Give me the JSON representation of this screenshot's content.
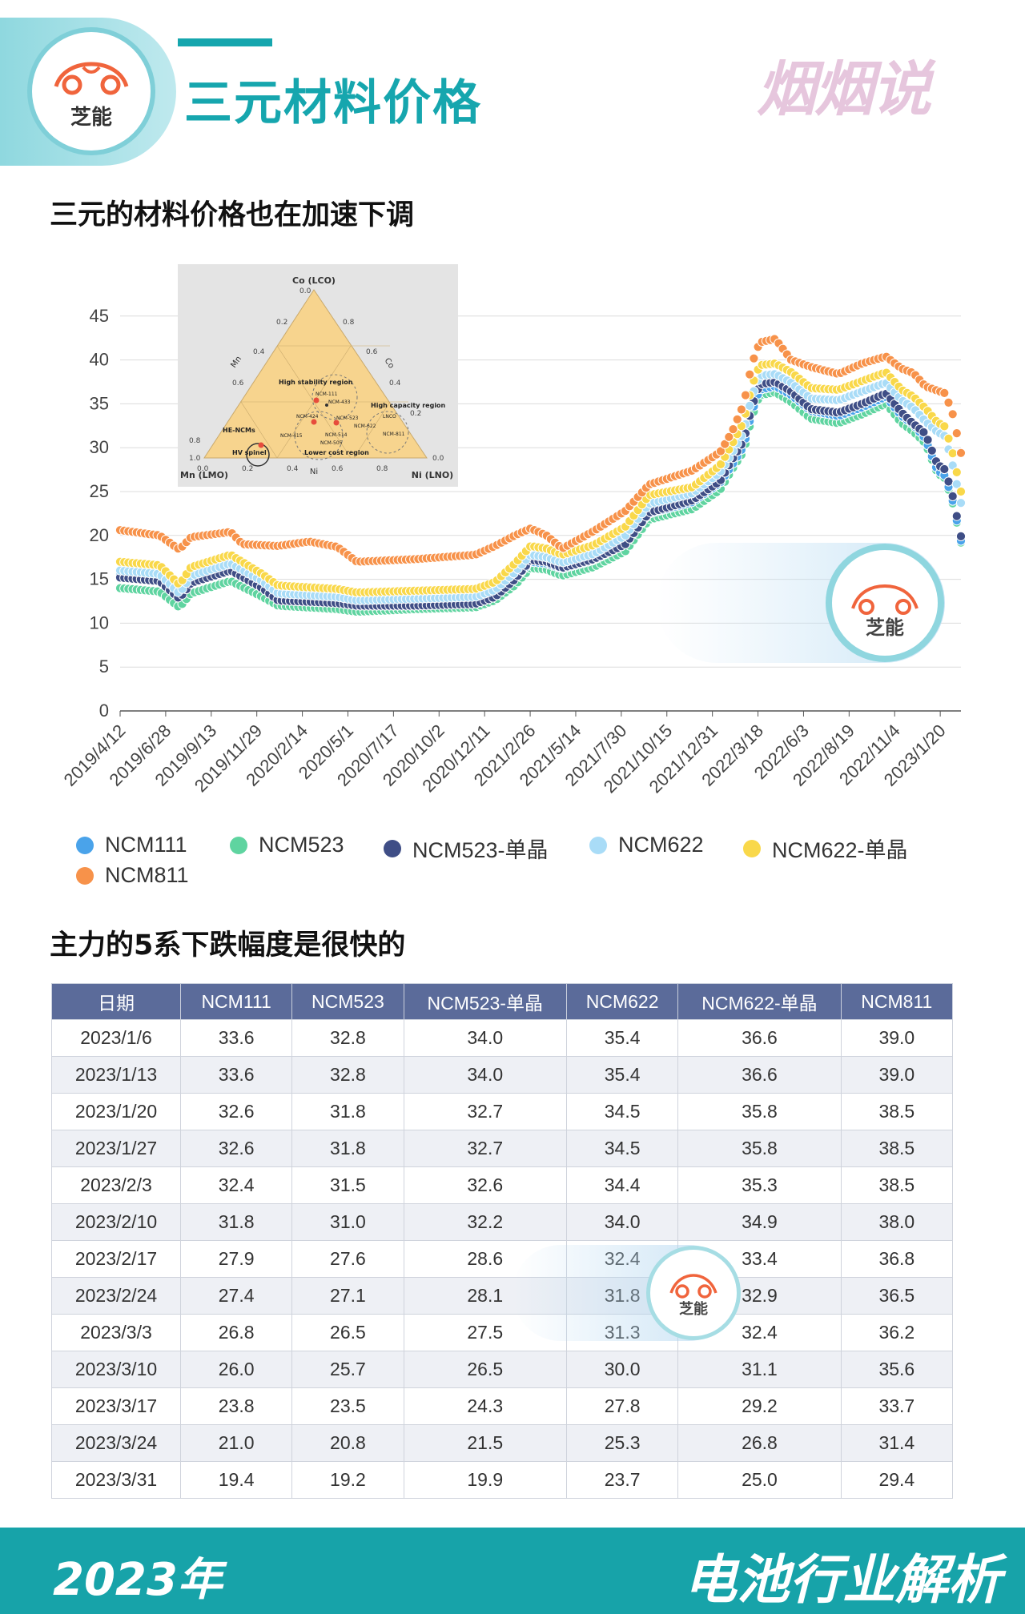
{
  "header": {
    "logo_text": "芝能",
    "title": "三元材料价格",
    "brand_mark": "烟烟说"
  },
  "section1_title": "三元的材料价格也在加速下调",
  "section2_title": "主力的5系下跌幅度是很快的",
  "footer": {
    "year": "2023年",
    "right_text": "电池行业解析"
  },
  "watermark": {
    "text": "芝能"
  },
  "inset": {
    "title_top": "Co (LCO)",
    "bottom_left": "Mn (LMO)",
    "bottom_right": "Ni (LNO)",
    "axis_left": "Mn",
    "axis_right": "Co",
    "axis_bottom": "Ni",
    "regions": [
      "High stability region",
      "High capacity region",
      "HE-NCMs",
      "HV spinel",
      "Lower cost region"
    ],
    "labels": [
      "NCM-111",
      "NCM-433",
      "NCM-424",
      "NCM-523",
      "NCM-622",
      "NCM-811",
      "LNCO",
      "NCM-514",
      "NCM-415",
      "NCM-505"
    ]
  },
  "chart_data": {
    "type": "scatter",
    "xlabel": "",
    "ylabel": "",
    "ylim": [
      0,
      45
    ],
    "yticks": [
      0,
      5,
      10,
      15,
      20,
      25,
      30,
      35,
      40,
      45
    ],
    "grid": true,
    "legend_position": "bottom",
    "x_tick_labels": [
      "2019/4/12",
      "2019/6/28",
      "2019/9/13",
      "2019/11/29",
      "2020/2/14",
      "2020/5/1",
      "2020/7/17",
      "2020/10/2",
      "2020/12/11",
      "2021/2/26",
      "2021/5/14",
      "2021/7/30",
      "2021/10/15",
      "2021/12/31",
      "2022/3/18",
      "2022/6/3",
      "2022/8/19",
      "2022/11/4",
      "2023/1/20"
    ],
    "n_weeks": 204,
    "anchors": {
      "NCM111": [
        [
          0,
          15.6
        ],
        [
          10,
          15.2
        ],
        [
          15,
          13.2
        ],
        [
          18,
          15.0
        ],
        [
          28,
          16.3
        ],
        [
          36,
          14.5
        ],
        [
          40,
          13.0
        ],
        [
          55,
          12.8
        ],
        [
          60,
          12.3
        ],
        [
          75,
          12.3
        ],
        [
          90,
          12.4
        ],
        [
          95,
          13.2
        ],
        [
          100,
          15.0
        ],
        [
          104,
          17.0
        ],
        [
          108,
          16.8
        ],
        [
          112,
          16.2
        ],
        [
          120,
          17.2
        ],
        [
          128,
          19.0
        ],
        [
          134,
          22.5
        ],
        [
          145,
          23.8
        ],
        [
          152,
          26.0
        ],
        [
          155,
          28.0
        ],
        [
          158,
          30.2
        ],
        [
          160,
          34.0
        ],
        [
          162,
          36.6
        ],
        [
          166,
          37.0
        ],
        [
          170,
          36.0
        ],
        [
          175,
          34.2
        ],
        [
          182,
          33.6
        ],
        [
          188,
          34.6
        ],
        [
          194,
          35.8
        ],
        [
          198,
          33.6
        ],
        [
          201,
          32.6
        ],
        [
          204,
          31.0
        ],
        [
          207,
          27.4
        ],
        [
          209,
          26.8
        ],
        [
          211,
          23.8
        ],
        [
          213,
          19.4
        ]
      ],
      "NCM523": [
        [
          0,
          14.0
        ],
        [
          10,
          13.6
        ],
        [
          15,
          11.8
        ],
        [
          18,
          13.4
        ],
        [
          28,
          14.8
        ],
        [
          36,
          13.0
        ],
        [
          40,
          12.0
        ],
        [
          55,
          11.6
        ],
        [
          60,
          11.3
        ],
        [
          75,
          11.6
        ],
        [
          90,
          11.8
        ],
        [
          95,
          12.6
        ],
        [
          100,
          14.3
        ],
        [
          104,
          16.3
        ],
        [
          108,
          16.1
        ],
        [
          112,
          15.4
        ],
        [
          120,
          16.4
        ],
        [
          128,
          18.2
        ],
        [
          134,
          21.8
        ],
        [
          145,
          23.0
        ],
        [
          152,
          25.2
        ],
        [
          155,
          27.5
        ],
        [
          158,
          29.6
        ],
        [
          160,
          33.4
        ],
        [
          162,
          36.0
        ],
        [
          166,
          36.3
        ],
        [
          170,
          35.2
        ],
        [
          175,
          33.3
        ],
        [
          182,
          32.8
        ],
        [
          188,
          33.8
        ],
        [
          194,
          35.0
        ],
        [
          198,
          32.8
        ],
        [
          201,
          31.8
        ],
        [
          204,
          30.5
        ],
        [
          207,
          27.1
        ],
        [
          209,
          26.5
        ],
        [
          211,
          23.5
        ],
        [
          213,
          19.2
        ]
      ],
      "NCM523-单晶": [
        [
          0,
          15.2
        ],
        [
          10,
          14.8
        ],
        [
          15,
          12.8
        ],
        [
          18,
          14.6
        ],
        [
          28,
          16.0
        ],
        [
          36,
          14.0
        ],
        [
          40,
          12.6
        ],
        [
          55,
          12.3
        ],
        [
          60,
          12.0
        ],
        [
          75,
          12.0
        ],
        [
          90,
          12.2
        ],
        [
          95,
          13.0
        ],
        [
          100,
          15.0
        ],
        [
          104,
          17.2
        ],
        [
          108,
          17.0
        ],
        [
          112,
          16.3
        ],
        [
          120,
          17.3
        ],
        [
          128,
          19.0
        ],
        [
          134,
          22.6
        ],
        [
          145,
          24.0
        ],
        [
          152,
          26.2
        ],
        [
          155,
          28.6
        ],
        [
          158,
          30.8
        ],
        [
          160,
          34.6
        ],
        [
          162,
          37.2
        ],
        [
          166,
          37.5
        ],
        [
          170,
          36.4
        ],
        [
          175,
          34.4
        ],
        [
          182,
          34.0
        ],
        [
          188,
          35.0
        ],
        [
          194,
          36.2
        ],
        [
          198,
          34.0
        ],
        [
          201,
          32.7
        ],
        [
          204,
          31.6
        ],
        [
          207,
          28.1
        ],
        [
          209,
          27.5
        ],
        [
          211,
          24.3
        ],
        [
          213,
          19.9
        ]
      ],
      "NCM622": [
        [
          0,
          16.0
        ],
        [
          10,
          15.6
        ],
        [
          15,
          13.4
        ],
        [
          18,
          15.4
        ],
        [
          28,
          16.8
        ],
        [
          36,
          14.8
        ],
        [
          40,
          13.4
        ],
        [
          55,
          13.0
        ],
        [
          60,
          12.6
        ],
        [
          75,
          12.8
        ],
        [
          90,
          13.0
        ],
        [
          95,
          13.8
        ],
        [
          100,
          15.8
        ],
        [
          104,
          17.8
        ],
        [
          108,
          17.5
        ],
        [
          112,
          16.9
        ],
        [
          120,
          17.9
        ],
        [
          128,
          20.0
        ],
        [
          134,
          23.6
        ],
        [
          145,
          24.8
        ],
        [
          152,
          27.2
        ],
        [
          155,
          29.4
        ],
        [
          158,
          31.8
        ],
        [
          160,
          35.8
        ],
        [
          162,
          38.2
        ],
        [
          166,
          38.4
        ],
        [
          170,
          37.4
        ],
        [
          175,
          35.6
        ],
        [
          182,
          35.4
        ],
        [
          188,
          36.4
        ],
        [
          194,
          37.4
        ],
        [
          198,
          35.4
        ],
        [
          201,
          34.5
        ],
        [
          204,
          33.0
        ],
        [
          207,
          31.8
        ],
        [
          209,
          31.3
        ],
        [
          211,
          27.8
        ],
        [
          213,
          23.7
        ]
      ],
      "NCM622-单晶": [
        [
          0,
          17.0
        ],
        [
          10,
          16.6
        ],
        [
          15,
          14.4
        ],
        [
          18,
          16.4
        ],
        [
          28,
          17.8
        ],
        [
          36,
          15.6
        ],
        [
          40,
          14.3
        ],
        [
          55,
          13.9
        ],
        [
          60,
          13.5
        ],
        [
          75,
          13.7
        ],
        [
          90,
          13.9
        ],
        [
          95,
          14.7
        ],
        [
          100,
          16.8
        ],
        [
          104,
          18.8
        ],
        [
          108,
          18.5
        ],
        [
          112,
          17.8
        ],
        [
          120,
          18.9
        ],
        [
          128,
          21.0
        ],
        [
          134,
          24.6
        ],
        [
          145,
          25.5
        ],
        [
          152,
          28.0
        ],
        [
          155,
          30.4
        ],
        [
          158,
          33.0
        ],
        [
          160,
          37.0
        ],
        [
          162,
          39.4
        ],
        [
          166,
          39.6
        ],
        [
          170,
          38.6
        ],
        [
          175,
          36.8
        ],
        [
          182,
          36.6
        ],
        [
          188,
          37.6
        ],
        [
          194,
          38.6
        ],
        [
          198,
          36.6
        ],
        [
          201,
          35.8
        ],
        [
          204,
          34.5
        ],
        [
          207,
          32.9
        ],
        [
          209,
          32.4
        ],
        [
          211,
          29.2
        ],
        [
          213,
          25.0
        ]
      ],
      "NCM811": [
        [
          0,
          20.6
        ],
        [
          10,
          20.0
        ],
        [
          15,
          18.4
        ],
        [
          18,
          19.8
        ],
        [
          28,
          20.4
        ],
        [
          31,
          19.0
        ],
        [
          40,
          18.8
        ],
        [
          48,
          19.3
        ],
        [
          55,
          18.7
        ],
        [
          60,
          17.0
        ],
        [
          75,
          17.3
        ],
        [
          90,
          17.8
        ],
        [
          95,
          18.8
        ],
        [
          100,
          20.0
        ],
        [
          104,
          20.8
        ],
        [
          108,
          20.0
        ],
        [
          112,
          18.5
        ],
        [
          120,
          20.5
        ],
        [
          128,
          22.8
        ],
        [
          134,
          25.8
        ],
        [
          145,
          27.4
        ],
        [
          152,
          29.5
        ],
        [
          155,
          31.8
        ],
        [
          158,
          35.0
        ],
        [
          160,
          39.5
        ],
        [
          162,
          42.0
        ],
        [
          166,
          42.4
        ],
        [
          170,
          40.0
        ],
        [
          175,
          39.2
        ],
        [
          182,
          38.4
        ],
        [
          188,
          39.6
        ],
        [
          194,
          40.4
        ],
        [
          198,
          39.0
        ],
        [
          201,
          38.5
        ],
        [
          204,
          37.0
        ],
        [
          207,
          36.5
        ],
        [
          209,
          36.2
        ],
        [
          211,
          33.7
        ],
        [
          213,
          29.4
        ]
      ]
    },
    "series": [
      {
        "name": "NCM111",
        "color": "#4aa3ea"
      },
      {
        "name": "NCM523",
        "color": "#5fd4a0"
      },
      {
        "name": "NCM523-单晶",
        "color": "#3f4e86"
      },
      {
        "name": "NCM622",
        "color": "#a9dcf7"
      },
      {
        "name": "NCM622-单晶",
        "color": "#f9d84a"
      },
      {
        "name": "NCM811",
        "color": "#f7924a"
      }
    ]
  },
  "table": {
    "headers": [
      "日期",
      "NCM111",
      "NCM523",
      "NCM523-单晶",
      "NCM622",
      "NCM622-单晶",
      "NCM811"
    ],
    "rows": [
      [
        "2023/1/6",
        "33.6",
        "32.8",
        "34.0",
        "35.4",
        "36.6",
        "39.0"
      ],
      [
        "2023/1/13",
        "33.6",
        "32.8",
        "34.0",
        "35.4",
        "36.6",
        "39.0"
      ],
      [
        "2023/1/20",
        "32.6",
        "31.8",
        "32.7",
        "34.5",
        "35.8",
        "38.5"
      ],
      [
        "2023/1/27",
        "32.6",
        "31.8",
        "32.7",
        "34.5",
        "35.8",
        "38.5"
      ],
      [
        "2023/2/3",
        "32.4",
        "31.5",
        "32.6",
        "34.4",
        "35.3",
        "38.5"
      ],
      [
        "2023/2/10",
        "31.8",
        "31.0",
        "32.2",
        "34.0",
        "34.9",
        "38.0"
      ],
      [
        "2023/2/17",
        "27.9",
        "27.6",
        "28.6",
        "32.4",
        "33.4",
        "36.8"
      ],
      [
        "2023/2/24",
        "27.4",
        "27.1",
        "28.1",
        "31.8",
        "32.9",
        "36.5"
      ],
      [
        "2023/3/3",
        "26.8",
        "26.5",
        "27.5",
        "31.3",
        "32.4",
        "36.2"
      ],
      [
        "2023/3/10",
        "26.0",
        "25.7",
        "26.5",
        "30.0",
        "31.1",
        "35.6"
      ],
      [
        "2023/3/17",
        "23.8",
        "23.5",
        "24.3",
        "27.8",
        "29.2",
        "33.7"
      ],
      [
        "2023/3/24",
        "21.0",
        "20.8",
        "21.5",
        "25.3",
        "26.8",
        "31.4"
      ],
      [
        "2023/3/31",
        "19.4",
        "19.2",
        "19.9",
        "23.7",
        "25.0",
        "29.4"
      ]
    ]
  }
}
